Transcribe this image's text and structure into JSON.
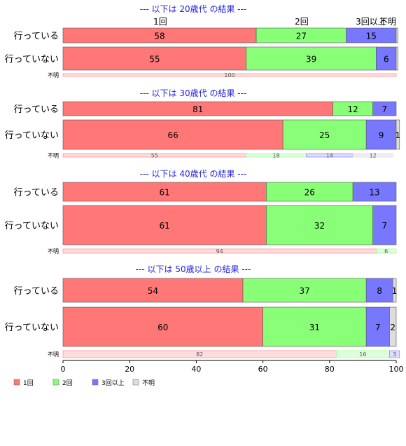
{
  "chart_data": {
    "type": "bar",
    "orientation": "horizontal",
    "stacked": true,
    "percent": true,
    "xlim": [
      0,
      100
    ],
    "xticks": [
      "0",
      "20",
      "40",
      "60",
      "80",
      "100"
    ],
    "grid": false,
    "legend_position": "bottom-left",
    "top_category_labels": [
      "1回",
      "2回",
      "3回以上",
      "不明"
    ],
    "legend": [
      {
        "name": "1回",
        "color": "#ff7777"
      },
      {
        "name": "2回",
        "color": "#88ff77"
      },
      {
        "name": "3回以上",
        "color": "#7777ff"
      },
      {
        "name": "不明",
        "color": "#dddddd"
      }
    ],
    "light_colors": [
      "#ffdddd",
      "#ddffdd",
      "#ddddff",
      "#eeeeee"
    ],
    "groups": [
      {
        "title": "--- 以下は 20歳代 の結果 ---",
        "rows": [
          {
            "label": "行っている",
            "size": "large",
            "values": [
              58,
              27,
              15,
              0.5
            ],
            "shown": [
              "58",
              "27",
              "15",
              ""
            ]
          },
          {
            "label": "行っていない",
            "size": "large",
            "values": [
              55,
              39,
              6,
              0.5
            ],
            "shown": [
              "55",
              "39",
              "6",
              ""
            ]
          },
          {
            "label": "不明",
            "size": "small",
            "values": [
              100,
              0,
              0,
              0
            ],
            "shown": [
              "100",
              "",
              "",
              ""
            ]
          }
        ]
      },
      {
        "title": "--- 以下は 30歳代 の結果 ---",
        "rows": [
          {
            "label": "行っている",
            "size": "large",
            "values": [
              81,
              12,
              7,
              0
            ],
            "shown": [
              "81",
              "12",
              "7",
              ""
            ]
          },
          {
            "label": "行っていない",
            "size": "large",
            "values": [
              66,
              25,
              9,
              1
            ],
            "shown": [
              "66",
              "25",
              "9",
              "1"
            ]
          },
          {
            "label": "不明",
            "size": "small",
            "values": [
              55,
              18,
              14,
              12
            ],
            "shown": [
              "55",
              "18",
              "14",
              "12"
            ]
          }
        ]
      },
      {
        "title": "--- 以下は 40歳代 の結果 ---",
        "rows": [
          {
            "label": "行っている",
            "size": "large",
            "values": [
              61,
              26,
              13,
              0
            ],
            "shown": [
              "61",
              "26",
              "13",
              ""
            ]
          },
          {
            "label": "行っていない",
            "size": "large",
            "values": [
              61,
              32,
              7,
              0
            ],
            "shown": [
              "61",
              "32",
              "7",
              ""
            ]
          },
          {
            "label": "不明",
            "size": "small",
            "values": [
              94,
              6,
              0,
              0
            ],
            "shown": [
              "94",
              "6",
              "",
              ""
            ]
          }
        ]
      },
      {
        "title": "--- 以下は 50歳以上 の結果 ---",
        "rows": [
          {
            "label": "行っている",
            "size": "large",
            "values": [
              54,
              37,
              8,
              1
            ],
            "shown": [
              "54",
              "37",
              "8",
              "1"
            ]
          },
          {
            "label": "行っていない",
            "size": "large",
            "values": [
              60,
              31,
              7,
              2
            ],
            "shown": [
              "60",
              "31",
              "7",
              "2"
            ]
          },
          {
            "label": "不明",
            "size": "small",
            "values": [
              82,
              16,
              3,
              0
            ],
            "shown": [
              "82",
              "16",
              "3",
              ""
            ]
          }
        ]
      }
    ]
  }
}
